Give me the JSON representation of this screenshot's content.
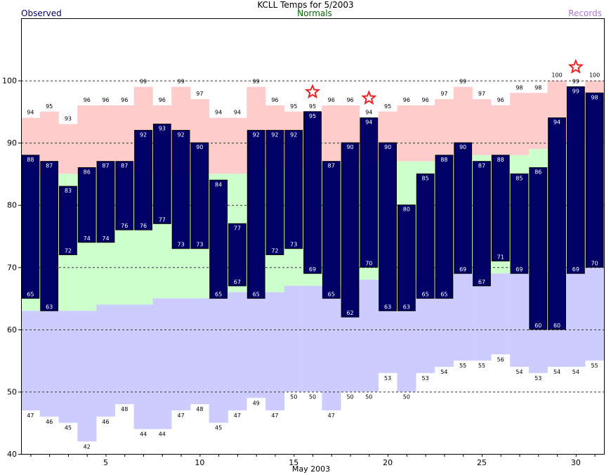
{
  "chart_data": {
    "type": "bar",
    "title": "KCLL Temps for 5/2003",
    "legend": {
      "observed": "Observed",
      "normals": "Normals",
      "records": "Records"
    },
    "xlabel": "May 2003",
    "ylabel": "",
    "x_ticks": [
      "5",
      "10",
      "15",
      "20",
      "25",
      "30"
    ],
    "y_ticks": [
      "40",
      "50",
      "60",
      "70",
      "80",
      "90",
      "100"
    ],
    "xlim": [
      0.5,
      31.5
    ],
    "ylim": [
      40,
      110
    ],
    "grid": true,
    "days": [
      1,
      2,
      3,
      4,
      5,
      6,
      7,
      8,
      9,
      10,
      11,
      12,
      13,
      14,
      15,
      16,
      17,
      18,
      19,
      20,
      21,
      22,
      23,
      24,
      25,
      26,
      27,
      28,
      29,
      30,
      31
    ],
    "observed_high": [
      88,
      87,
      83,
      86,
      87,
      87,
      92,
      93,
      92,
      90,
      84,
      77,
      92,
      92,
      92,
      95,
      87,
      90,
      94,
      90,
      80,
      85,
      88,
      90,
      87,
      88,
      85,
      86,
      94,
      99,
      98
    ],
    "observed_low": [
      65,
      63,
      72,
      74,
      74,
      76,
      76,
      77,
      73,
      73,
      65,
      67,
      65,
      72,
      73,
      69,
      65,
      62,
      70,
      63,
      63,
      65,
      65,
      69,
      67,
      71,
      69,
      60,
      60,
      69,
      70
    ],
    "record_high": [
      94,
      95,
      93,
      96,
      96,
      96,
      99,
      96,
      99,
      97,
      94,
      94,
      99,
      96,
      95,
      95,
      96,
      96,
      94,
      95,
      96,
      96,
      97,
      99,
      97,
      96,
      98,
      98,
      100,
      99,
      100
    ],
    "record_low": [
      47,
      46,
      45,
      42,
      46,
      48,
      44,
      44,
      47,
      48,
      45,
      47,
      49,
      47,
      50,
      50,
      47,
      50,
      50,
      53,
      50,
      53,
      54,
      55,
      55,
      56,
      54,
      53,
      54,
      54,
      55
    ],
    "normal_high": [
      85,
      85,
      85,
      85,
      85,
      85,
      85,
      85,
      85,
      85,
      85,
      85,
      86,
      86,
      86,
      86,
      87,
      87,
      87,
      87,
      87,
      87,
      87,
      87,
      88,
      88,
      88,
      89,
      90,
      90,
      90
    ],
    "normal_low": [
      63,
      63,
      63,
      63,
      64,
      64,
      64,
      65,
      65,
      65,
      65,
      66,
      66,
      66,
      67,
      67,
      67,
      67,
      68,
      68,
      68,
      68,
      68,
      69,
      69,
      69,
      69,
      69,
      69,
      70,
      70
    ],
    "record_set_days": [
      16,
      19,
      30
    ],
    "colors": {
      "observed": "#000066",
      "normal_band": "#ccffcc",
      "record_high_band": "#ffcccc",
      "record_low_band": "#ccccff",
      "record_star": "#ee2222",
      "title_normals": "#006600",
      "title_records": "#aa77cc"
    }
  }
}
